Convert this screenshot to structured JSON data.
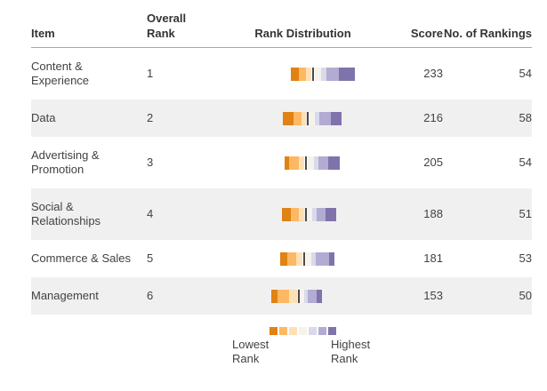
{
  "palette": [
    "#e08214",
    "#fdb863",
    "#fee0b6",
    "#f7f2ec",
    "#d8daeb",
    "#b2abd2",
    "#8073ac"
  ],
  "header": {
    "item": "Item",
    "overall_rank": "Overall Rank",
    "rank_distribution": "Rank Distribution",
    "score": "Score",
    "no_of_rankings": "No. of Rankings"
  },
  "rows": [
    {
      "item": "Content & Experience",
      "rank": "1",
      "score": "233",
      "rankings": "54",
      "dist": {
        "offset": 74,
        "segments": [
          {
            "c": 0,
            "w": 9
          },
          {
            "c": 1,
            "w": 8
          },
          {
            "c": 2,
            "w": 6
          },
          {
            "m": true
          },
          {
            "c": 3,
            "w": 7
          },
          {
            "c": 4,
            "w": 6
          },
          {
            "c": 5,
            "w": 14
          },
          {
            "c": 6,
            "w": 18
          }
        ]
      }
    },
    {
      "item": "Data",
      "rank": "2",
      "score": "216",
      "rankings": "58",
      "dist": {
        "offset": 65,
        "segments": [
          {
            "c": 0,
            "w": 12
          },
          {
            "c": 1,
            "w": 9
          },
          {
            "c": 2,
            "w": 5
          },
          {
            "m": true
          },
          {
            "c": 3,
            "w": 6
          },
          {
            "c": 4,
            "w": 5
          },
          {
            "c": 5,
            "w": 13
          },
          {
            "c": 6,
            "w": 12
          }
        ]
      }
    },
    {
      "item": "Advertising & Promotion",
      "rank": "3",
      "score": "205",
      "rankings": "54",
      "dist": {
        "offset": 67,
        "segments": [
          {
            "c": 0,
            "w": 5
          },
          {
            "c": 1,
            "w": 11
          },
          {
            "c": 2,
            "w": 6
          },
          {
            "m": true
          },
          {
            "c": 3,
            "w": 7
          },
          {
            "c": 4,
            "w": 5
          },
          {
            "c": 5,
            "w": 11
          },
          {
            "c": 6,
            "w": 13
          }
        ]
      }
    },
    {
      "item": "Social & Relationships",
      "rank": "4",
      "score": "188",
      "rankings": "51",
      "dist": {
        "offset": 64,
        "segments": [
          {
            "c": 0,
            "w": 10
          },
          {
            "c": 1,
            "w": 9
          },
          {
            "c": 2,
            "w": 6
          },
          {
            "m": true
          },
          {
            "c": 3,
            "w": 5
          },
          {
            "c": 4,
            "w": 5
          },
          {
            "c": 5,
            "w": 10
          },
          {
            "c": 6,
            "w": 12
          }
        ]
      }
    },
    {
      "item": "Commerce & Sales",
      "rank": "5",
      "score": "181",
      "rankings": "53",
      "dist": {
        "offset": 62,
        "segments": [
          {
            "c": 0,
            "w": 8
          },
          {
            "c": 1,
            "w": 10
          },
          {
            "c": 2,
            "w": 7
          },
          {
            "m": true
          },
          {
            "c": 3,
            "w": 6
          },
          {
            "c": 4,
            "w": 5
          },
          {
            "c": 5,
            "w": 15
          },
          {
            "c": 6,
            "w": 6
          }
        ]
      }
    },
    {
      "item": "Management",
      "rank": "6",
      "score": "153",
      "rankings": "50",
      "dist": {
        "offset": 52,
        "segments": [
          {
            "c": 0,
            "w": 7
          },
          {
            "c": 1,
            "w": 13
          },
          {
            "c": 2,
            "w": 9
          },
          {
            "m": true
          },
          {
            "c": 3,
            "w": 4
          },
          {
            "c": 4,
            "w": 4
          },
          {
            "c": 5,
            "w": 10
          },
          {
            "c": 6,
            "w": 6
          }
        ]
      }
    }
  ],
  "legend": {
    "lowest_label": "Lowest Rank",
    "highest_label": "Highest Rank",
    "colors": [
      "#e08214",
      "#fdb863",
      "#fee0b6",
      "#f7f2ec",
      "#d8daeb",
      "#b2abd2",
      "#8073ac"
    ]
  },
  "chart_data": {
    "type": "table",
    "title": "",
    "columns": [
      "Item",
      "Overall Rank",
      "Rank Distribution",
      "Score",
      "No. of Rankings"
    ],
    "rows": [
      {
        "item": "Content & Experience",
        "overall_rank": 1,
        "score": 233,
        "no_of_rankings": 54
      },
      {
        "item": "Data",
        "overall_rank": 2,
        "score": 216,
        "no_of_rankings": 58
      },
      {
        "item": "Advertising & Promotion",
        "overall_rank": 3,
        "score": 205,
        "no_of_rankings": 54
      },
      {
        "item": "Social & Relationships",
        "overall_rank": 4,
        "score": 188,
        "no_of_rankings": 51
      },
      {
        "item": "Commerce & Sales",
        "overall_rank": 5,
        "score": 181,
        "no_of_rankings": 53
      },
      {
        "item": "Management",
        "overall_rank": 6,
        "score": 153,
        "no_of_rankings": 50
      }
    ],
    "legend": [
      "Lowest Rank",
      "Highest Rank"
    ],
    "notes": "Rank Distribution rendered as diverging stacked bars from orange (lowest rank) to purple (highest rank) with a dark median marker line in each bar"
  }
}
